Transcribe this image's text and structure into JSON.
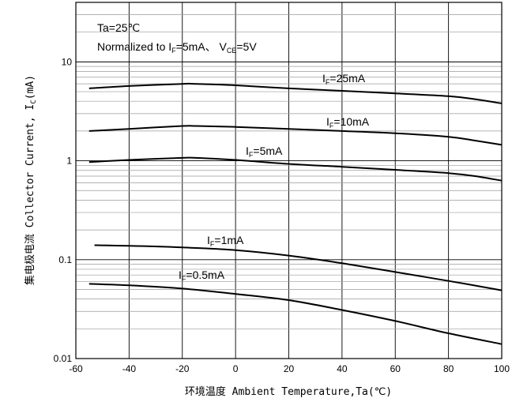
{
  "chart_data": {
    "type": "line",
    "xlabel": "环境温度 Ambient Temperature,Ta(℃)",
    "ylabel_cn": "集电极电流",
    "ylabel_en": "Collector Current, I",
    "ylabel_sub": "C",
    "ylabel_unit": "(mA)",
    "xlim": [
      -60,
      100
    ],
    "ylim": [
      0.01,
      40
    ],
    "yscale": "log",
    "grid": true,
    "x_ticks": [
      "-60",
      "-40",
      "-20",
      "0",
      "20",
      "40",
      "60",
      "80",
      "100"
    ],
    "y_ticks": [
      "0.01",
      "0.1",
      "1",
      "10"
    ],
    "annotations": {
      "line1": "Ta=25℃",
      "line2_prefix": "Normalized to I",
      "line2_sub1": "F",
      "line2_mid": "=5mA、 V",
      "line2_sub2": "CE",
      "line2_suffix": "=5V"
    },
    "series": [
      {
        "label_main": "I",
        "label_sub": "F",
        "label_val": "=25mA",
        "x": [
          -55,
          -40,
          -20,
          -15,
          0,
          20,
          40,
          60,
          80,
          90,
          100
        ],
        "y": [
          5.4,
          5.7,
          6.0,
          6.0,
          5.8,
          5.4,
          5.1,
          4.8,
          4.5,
          4.2,
          3.8
        ]
      },
      {
        "label_main": "I",
        "label_sub": "F",
        "label_val": "=10mA",
        "x": [
          -55,
          -40,
          -20,
          -15,
          0,
          20,
          40,
          60,
          80,
          90,
          100
        ],
        "y": [
          2.0,
          2.1,
          2.25,
          2.25,
          2.2,
          2.1,
          2.0,
          1.9,
          1.75,
          1.6,
          1.45
        ]
      },
      {
        "label_main": "I",
        "label_sub": "F",
        "label_val": "=5mA",
        "x": [
          -55,
          -40,
          -20,
          -15,
          0,
          20,
          40,
          60,
          80,
          90,
          100
        ],
        "y": [
          0.97,
          1.02,
          1.07,
          1.07,
          1.02,
          0.93,
          0.87,
          0.81,
          0.75,
          0.7,
          0.63
        ]
      },
      {
        "label_main": "I",
        "label_sub": "F",
        "label_val": "=1mA",
        "x": [
          -53,
          -40,
          -20,
          0,
          20,
          40,
          60,
          80,
          100
        ],
        "y": [
          0.14,
          0.138,
          0.133,
          0.125,
          0.11,
          0.092,
          0.075,
          0.061,
          0.049
        ]
      },
      {
        "label_main": "I",
        "label_sub": "F",
        "label_val": "=0.5mA",
        "x": [
          -55,
          -40,
          -20,
          0,
          20,
          40,
          60,
          80,
          100
        ],
        "y": [
          0.057,
          0.055,
          0.051,
          0.045,
          0.039,
          0.031,
          0.024,
          0.018,
          0.014
        ]
      }
    ]
  }
}
